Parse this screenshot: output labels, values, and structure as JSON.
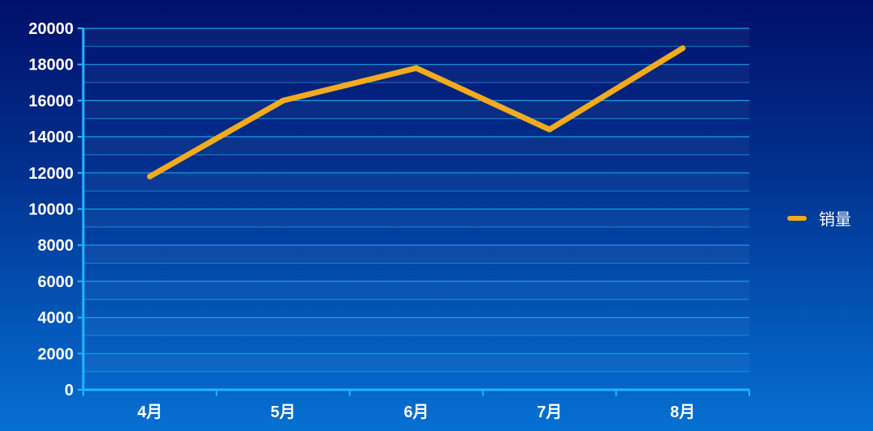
{
  "chart_data": {
    "type": "line",
    "categories": [
      "4月",
      "5月",
      "6月",
      "7月",
      "8月"
    ],
    "series": [
      {
        "name": "销量",
        "values": [
          11800,
          16000,
          17800,
          14400,
          18900
        ]
      }
    ],
    "ylim": [
      0,
      20000
    ],
    "yticks": [
      0,
      2000,
      4000,
      6000,
      8000,
      10000,
      12000,
      14000,
      16000,
      18000,
      20000
    ],
    "grid": "horizontal",
    "legend_position": "right",
    "colors": {
      "series": "#f2ab1c",
      "axis": "#1fb6ff",
      "grid": "#1a9fe8",
      "band": "#ffffff",
      "text": "#ffffff"
    }
  }
}
